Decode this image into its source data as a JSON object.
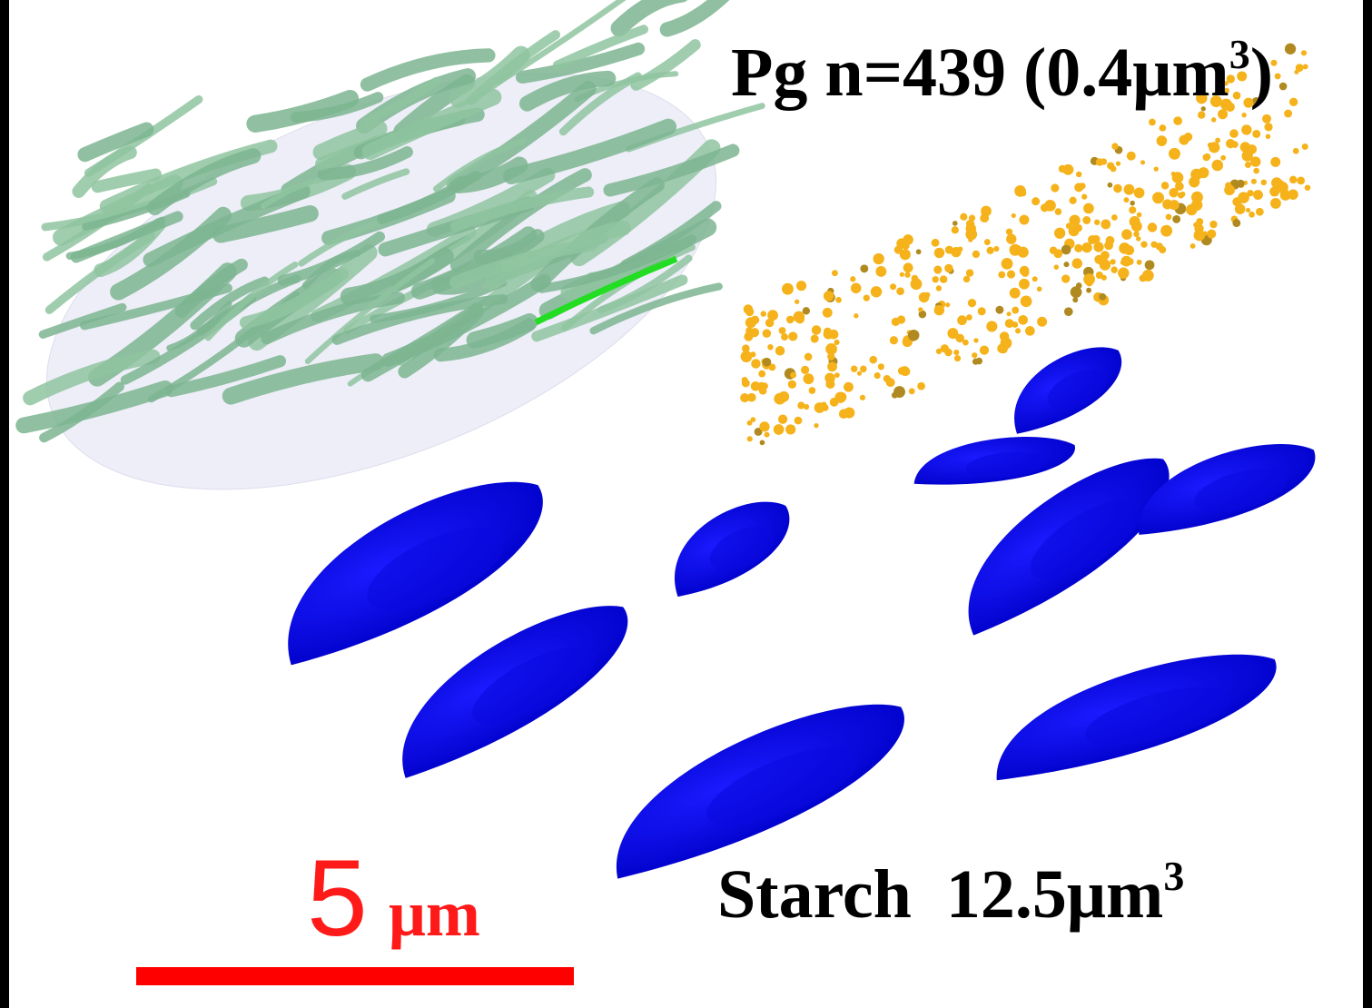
{
  "pg_label": {
    "main": "Pg n=439 (0.4μm",
    "sup": "3",
    "close": ")"
  },
  "starch_label": {
    "main": "Starch  12.5μm",
    "sup": "3"
  },
  "scale_bar": {
    "number": "5",
    "unit": "μm"
  }
}
